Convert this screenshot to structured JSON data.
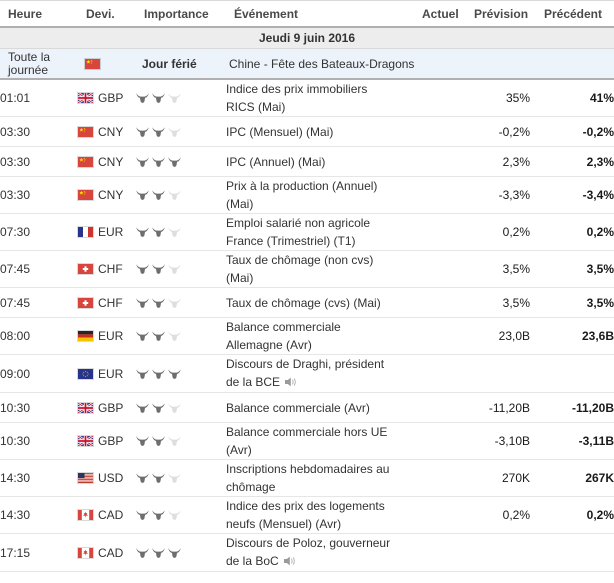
{
  "header": {
    "columns": [
      "Heure",
      "Devi.",
      "Importance",
      "Événement",
      "Actuel",
      "Prévision",
      "Précédent"
    ]
  },
  "date_row": {
    "label": "Jeudi 9 juin 2016"
  },
  "holiday_row": {
    "time": "Toute la journée",
    "flag": "cny",
    "importance_label": "Jour férié",
    "event": "Chine - Fête des Bateaux-Dragons",
    "actual": "",
    "forecast": "",
    "previous": ""
  },
  "rows": [
    {
      "time": "01:01",
      "flag": "gbp",
      "currency": "GBP",
      "importance": 2,
      "max_importance": 3,
      "event_lines": [
        "Indice des prix immobiliers",
        "RICS (Mai)"
      ],
      "speaker": false,
      "actual": "",
      "forecast": "35%",
      "previous": "41%"
    },
    {
      "time": "03:30",
      "flag": "cny",
      "currency": "CNY",
      "importance": 2,
      "max_importance": 3,
      "event_lines": [
        "IPC (Mensuel) (Mai)"
      ],
      "speaker": false,
      "actual": "",
      "forecast": "-0,2%",
      "previous": "-0,2%"
    },
    {
      "time": "03:30",
      "flag": "cny",
      "currency": "CNY",
      "importance": 3,
      "max_importance": 3,
      "event_lines": [
        "IPC (Annuel) (Mai)"
      ],
      "speaker": false,
      "actual": "",
      "forecast": "2,3%",
      "previous": "2,3%"
    },
    {
      "time": "03:30",
      "flag": "cny",
      "currency": "CNY",
      "importance": 2,
      "max_importance": 3,
      "event_lines": [
        "Prix à la production (Annuel)",
        "(Mai)"
      ],
      "speaker": false,
      "actual": "",
      "forecast": "-3,3%",
      "previous": "-3,4%"
    },
    {
      "time": "07:30",
      "flag": "fra",
      "currency": "EUR",
      "importance": 2,
      "max_importance": 3,
      "event_lines": [
        "Emploi salarié non agricole",
        "France (Trimestriel) (T1)"
      ],
      "speaker": false,
      "actual": "",
      "forecast": "0,2%",
      "previous": "0,2%"
    },
    {
      "time": "07:45",
      "flag": "che",
      "currency": "CHF",
      "importance": 2,
      "max_importance": 3,
      "event_lines": [
        "Taux de chômage (non cvs)",
        "(Mai)"
      ],
      "speaker": false,
      "actual": "",
      "forecast": "3,5%",
      "previous": "3,5%"
    },
    {
      "time": "07:45",
      "flag": "che",
      "currency": "CHF",
      "importance": 2,
      "max_importance": 3,
      "event_lines": [
        "Taux de chômage (cvs) (Mai)"
      ],
      "speaker": false,
      "actual": "",
      "forecast": "3,5%",
      "previous": "3,5%"
    },
    {
      "time": "08:00",
      "flag": "deu",
      "currency": "EUR",
      "importance": 2,
      "max_importance": 3,
      "event_lines": [
        "Balance commerciale",
        "Allemagne (Avr)"
      ],
      "speaker": false,
      "actual": "",
      "forecast": "23,0B",
      "previous": "23,6B"
    },
    {
      "time": "09:00",
      "flag": "eur",
      "currency": "EUR",
      "importance": 3,
      "max_importance": 3,
      "event_lines": [
        "Discours de Draghi, président",
        "de la BCE"
      ],
      "speaker": true,
      "actual": "",
      "forecast": "",
      "previous": ""
    },
    {
      "time": "10:30",
      "flag": "gbp",
      "currency": "GBP",
      "importance": 2,
      "max_importance": 3,
      "event_lines": [
        "Balance commerciale (Avr)"
      ],
      "speaker": false,
      "actual": "",
      "forecast": "-11,20B",
      "previous": "-11,20B"
    },
    {
      "time": "10:30",
      "flag": "gbp",
      "currency": "GBP",
      "importance": 2,
      "max_importance": 3,
      "event_lines": [
        "Balance commerciale hors UE",
        "(Avr)"
      ],
      "speaker": false,
      "actual": "",
      "forecast": "-3,10B",
      "previous": "-3,11B"
    },
    {
      "time": "14:30",
      "flag": "usa",
      "currency": "USD",
      "importance": 2,
      "max_importance": 3,
      "event_lines": [
        "Inscriptions hebdomadaires au",
        "chômage"
      ],
      "speaker": false,
      "actual": "",
      "forecast": "270K",
      "previous": "267K"
    },
    {
      "time": "14:30",
      "flag": "can",
      "currency": "CAD",
      "importance": 2,
      "max_importance": 3,
      "event_lines": [
        "Indice des prix des logements",
        "neufs (Mensuel) (Avr)"
      ],
      "speaker": false,
      "actual": "",
      "forecast": "0,2%",
      "previous": "0,2%"
    },
    {
      "time": "17:15",
      "flag": "can",
      "currency": "CAD",
      "importance": 3,
      "max_importance": 3,
      "event_lines": [
        "Discours de Poloz, gouverneur",
        "de la BoC"
      ],
      "speaker": true,
      "actual": "",
      "forecast": "",
      "previous": ""
    }
  ],
  "icons": {
    "importance": "bull-icon",
    "speech": "speaker-icon"
  },
  "colors": {
    "header_text": "#4a4a4a",
    "strong_border": "#b0b0b0",
    "row_border": "#e6e6e6",
    "date_row_bg": "#ededed",
    "holiday_row_bg": "#edf3fa",
    "bull_active": "#6e6e6e",
    "bull_inactive": "#dedede",
    "text": "#333333"
  }
}
